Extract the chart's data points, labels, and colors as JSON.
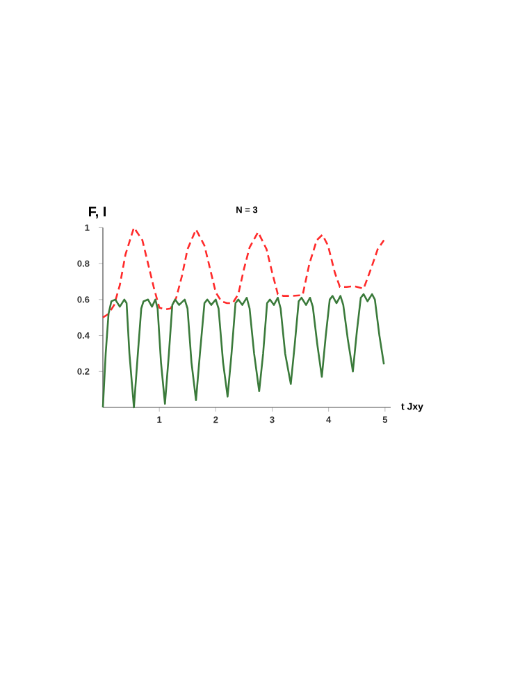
{
  "chart_data": {
    "type": "line",
    "title": "N = 3",
    "xlabel": "t Jxy",
    "ylabel": "F, I",
    "xlim": [
      0,
      5.1
    ],
    "ylim": [
      0,
      1
    ],
    "xticks": [
      1,
      2,
      3,
      4,
      5
    ],
    "yticks": [
      0.2,
      0.4,
      0.6,
      0.8,
      1
    ],
    "marker": "none",
    "series": [
      {
        "color": "#ff2a2a",
        "line_style": "dashed",
        "x": [
          0,
          0.1,
          0.2,
          0.3,
          0.4,
          0.55,
          0.7,
          0.8,
          0.9,
          1.0,
          1.1,
          1.2,
          1.3,
          1.4,
          1.5,
          1.65,
          1.8,
          1.9,
          2.0,
          2.1,
          2.2,
          2.3,
          2.4,
          2.5,
          2.6,
          2.75,
          2.9,
          3.0,
          3.1,
          3.2,
          3.35,
          3.54,
          3.66,
          3.79,
          3.89,
          3.99,
          4.11,
          4.2,
          4.32,
          4.45,
          4.62,
          4.75,
          4.87,
          4.98
        ],
        "values": [
          0.5,
          0.52,
          0.57,
          0.68,
          0.85,
          1.0,
          0.93,
          0.8,
          0.67,
          0.555,
          0.545,
          0.55,
          0.61,
          0.73,
          0.88,
          0.99,
          0.9,
          0.77,
          0.64,
          0.59,
          0.58,
          0.58,
          0.63,
          0.77,
          0.89,
          0.975,
          0.88,
          0.75,
          0.63,
          0.62,
          0.62,
          0.625,
          0.8,
          0.93,
          0.96,
          0.9,
          0.75,
          0.67,
          0.67,
          0.675,
          0.66,
          0.77,
          0.88,
          0.93
        ]
      },
      {
        "color": "#3a7a3a",
        "line_style": "solid",
        "x": [
          0,
          0.05,
          0.1,
          0.15,
          0.22,
          0.3,
          0.38,
          0.42,
          0.47,
          0.55,
          0.62,
          0.68,
          0.72,
          0.8,
          0.87,
          0.93,
          0.97,
          1.03,
          1.1,
          1.17,
          1.23,
          1.28,
          1.35,
          1.45,
          1.5,
          1.57,
          1.65,
          1.72,
          1.8,
          1.85,
          1.92,
          2.0,
          2.05,
          2.13,
          2.21,
          2.28,
          2.35,
          2.4,
          2.47,
          2.55,
          2.6,
          2.68,
          2.77,
          2.84,
          2.91,
          2.96,
          3.03,
          3.1,
          3.15,
          3.23,
          3.33,
          3.4,
          3.47,
          3.52,
          3.6,
          3.67,
          3.72,
          3.8,
          3.88,
          3.95,
          4.02,
          4.07,
          4.14,
          4.21,
          4.26,
          4.34,
          4.43,
          4.5,
          4.57,
          4.62,
          4.69,
          4.77,
          4.82,
          4.9,
          4.98
        ],
        "values": [
          0,
          0.3,
          0.52,
          0.59,
          0.6,
          0.56,
          0.6,
          0.58,
          0.3,
          0.0,
          0.3,
          0.55,
          0.59,
          0.6,
          0.56,
          0.6,
          0.55,
          0.25,
          0.02,
          0.3,
          0.57,
          0.6,
          0.57,
          0.6,
          0.55,
          0.25,
          0.04,
          0.3,
          0.58,
          0.6,
          0.57,
          0.6,
          0.55,
          0.25,
          0.06,
          0.3,
          0.58,
          0.6,
          0.57,
          0.61,
          0.55,
          0.3,
          0.09,
          0.3,
          0.58,
          0.6,
          0.57,
          0.61,
          0.55,
          0.3,
          0.13,
          0.35,
          0.59,
          0.61,
          0.57,
          0.61,
          0.56,
          0.35,
          0.17,
          0.4,
          0.6,
          0.62,
          0.58,
          0.62,
          0.57,
          0.38,
          0.2,
          0.42,
          0.61,
          0.63,
          0.59,
          0.63,
          0.6,
          0.4,
          0.24
        ]
      }
    ]
  }
}
